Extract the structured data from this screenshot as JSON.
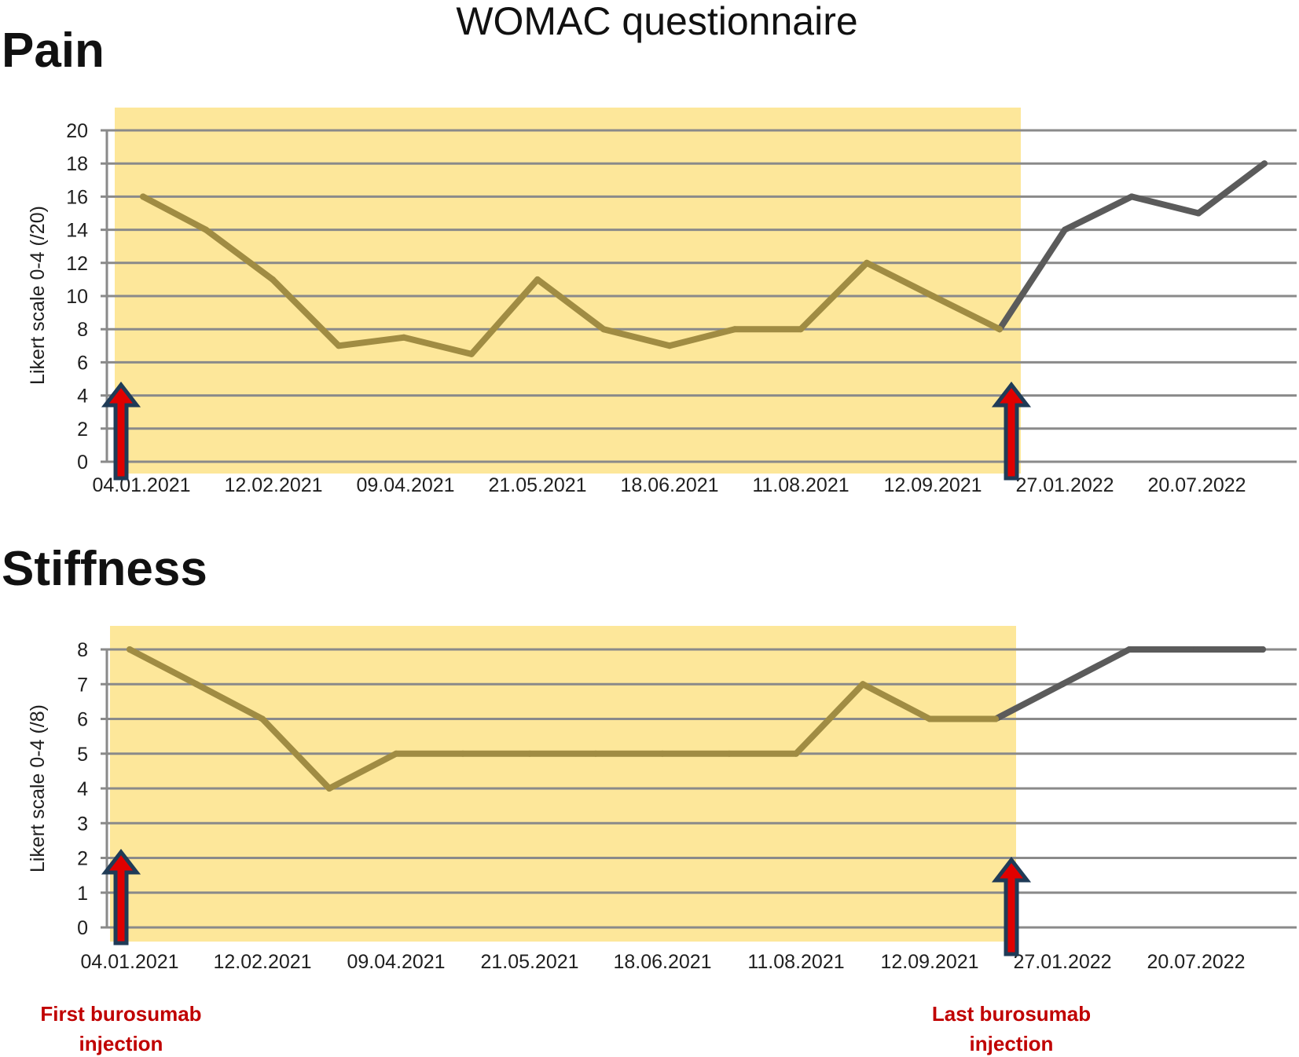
{
  "figure_title": "WOMAC questionnaire",
  "colors": {
    "shade": "#fde79a",
    "treated_line": "#a08c43",
    "after_line": "#5b5b5b",
    "grid": "#8a8a8a",
    "arrow_fill": "#e00000",
    "arrow_outline": "#1f3b57",
    "note": "#c00000"
  },
  "notes": {
    "first": [
      "First burosumab",
      "injection"
    ],
    "last": [
      "Last burosumab",
      "injection"
    ]
  },
  "chart_data": [
    {
      "type": "line",
      "title": "Pain",
      "xlabel": "",
      "ylabel": "Likert scale 0-4 (/20)",
      "ylim": [
        0,
        20
      ],
      "ytick_step": 2,
      "grid": true,
      "x_tick_labels": [
        "04.01.2021",
        "12.02.2021",
        "09.04.2021",
        "21.05.2021",
        "18.06.2021",
        "11.08.2021",
        "12.09.2021",
        "27.01.2022",
        "20.07.2022"
      ],
      "values": [
        16,
        14,
        11,
        7,
        7.5,
        6.5,
        11,
        8,
        7,
        8,
        8,
        12,
        10,
        8,
        14,
        16,
        15,
        18
      ],
      "treatment_last_index": 13,
      "arrows_at": [
        "04.01.2021",
        "between 12.09.2021 and 27.01.2022"
      ]
    },
    {
      "type": "line",
      "title": "Stiffness",
      "xlabel": "",
      "ylabel": "Likert scale 0-4 (/8)",
      "ylim": [
        0,
        8
      ],
      "ytick_step": 1,
      "grid": true,
      "x_tick_labels": [
        "04.01.2021",
        "12.02.2021",
        "09.04.2021",
        "21.05.2021",
        "18.06.2021",
        "11.08.2021",
        "12.09.2021",
        "27.01.2022",
        "20.07.2022"
      ],
      "values": [
        8,
        7,
        6,
        4,
        5,
        5,
        5,
        5,
        5,
        5,
        5,
        7,
        6,
        6,
        7,
        8,
        8,
        8
      ],
      "treatment_last_index": 13,
      "arrows_at": [
        "04.01.2021",
        "between 12.09.2021 and 27.01.2022"
      ]
    }
  ]
}
